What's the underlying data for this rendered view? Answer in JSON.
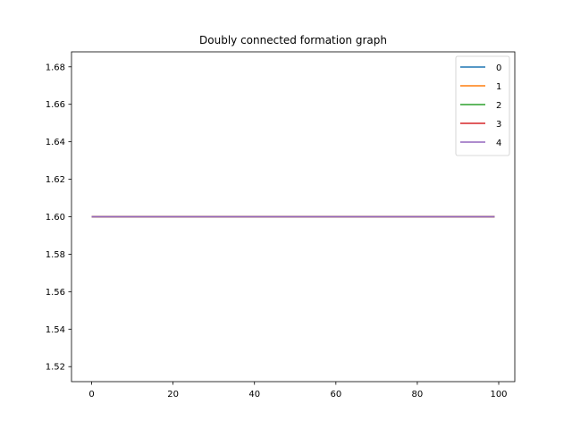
{
  "chart_data": {
    "type": "line",
    "title": "Doubly connected formation graph",
    "xlabel": "",
    "ylabel": "",
    "xlim": [
      -4.95,
      103.95
    ],
    "ylim": [
      1.512,
      1.688
    ],
    "x_ticks": [
      0,
      20,
      40,
      60,
      80,
      100
    ],
    "x_tick_labels": [
      "0",
      "20",
      "40",
      "60",
      "80",
      "100"
    ],
    "y_ticks": [
      1.52,
      1.54,
      1.56,
      1.58,
      1.6,
      1.62,
      1.64,
      1.66,
      1.68
    ],
    "y_tick_labels": [
      "1.52",
      "1.54",
      "1.56",
      "1.58",
      "1.60",
      "1.62",
      "1.64",
      "1.66",
      "1.68"
    ],
    "grid": false,
    "legend_position": "top-right",
    "x_range": [
      0,
      99
    ],
    "series": [
      {
        "name": "0",
        "color": "#1f77b4",
        "x": [
          0,
          99
        ],
        "y": [
          1.6,
          1.6
        ]
      },
      {
        "name": "1",
        "color": "#ff7f0e",
        "x": [
          0,
          99
        ],
        "y": [
          1.6,
          1.6
        ]
      },
      {
        "name": "2",
        "color": "#2ca02c",
        "x": [
          0,
          99
        ],
        "y": [
          1.6,
          1.6
        ]
      },
      {
        "name": "3",
        "color": "#d62728",
        "x": [
          0,
          99
        ],
        "y": [
          1.6,
          1.6
        ]
      },
      {
        "name": "4",
        "color": "#9467bd",
        "x": [
          0,
          99
        ],
        "y": [
          1.6,
          1.6
        ]
      }
    ]
  }
}
